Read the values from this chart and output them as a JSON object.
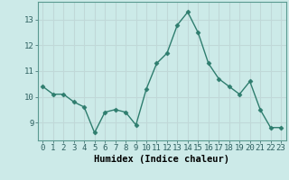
{
  "x": [
    0,
    1,
    2,
    3,
    4,
    5,
    6,
    7,
    8,
    9,
    10,
    11,
    12,
    13,
    14,
    15,
    16,
    17,
    18,
    19,
    20,
    21,
    22,
    23
  ],
  "y": [
    10.4,
    10.1,
    10.1,
    9.8,
    9.6,
    8.6,
    9.4,
    9.5,
    9.4,
    8.9,
    10.3,
    11.3,
    11.7,
    12.8,
    13.3,
    12.5,
    11.3,
    10.7,
    10.4,
    10.1,
    10.6,
    9.5,
    8.8,
    8.8
  ],
  "line_color": "#2e7d6e",
  "marker": "D",
  "marker_size": 2.5,
  "bg_color": "#cceae8",
  "grid_color": "#c0d8d8",
  "xlabel": "Humidex (Indice chaleur)",
  "xlabel_fontsize": 7.5,
  "yticks": [
    9,
    10,
    11,
    12,
    13
  ],
  "xticks": [
    0,
    1,
    2,
    3,
    4,
    5,
    6,
    7,
    8,
    9,
    10,
    11,
    12,
    13,
    14,
    15,
    16,
    17,
    18,
    19,
    20,
    21,
    22,
    23
  ],
  "xlim": [
    -0.5,
    23.5
  ],
  "ylim": [
    8.3,
    13.7
  ],
  "tick_fontsize": 6.5,
  "line_width": 1.0,
  "spine_color": "#5a9a90"
}
